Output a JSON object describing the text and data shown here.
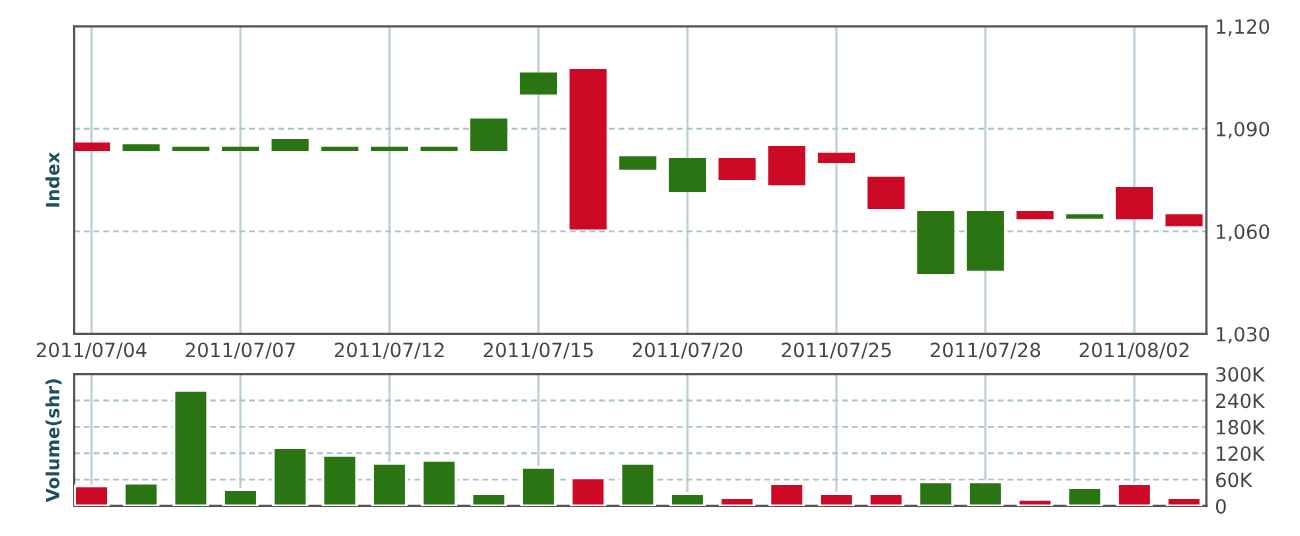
{
  "chart_data": [
    {
      "type": "candlestick",
      "ylabel": "Index",
      "categories": [
        "2011/07/04",
        null,
        null,
        "2011/07/07",
        null,
        null,
        "2011/07/12",
        null,
        null,
        "2011/07/15",
        null,
        null,
        "2011/07/20",
        null,
        null,
        "2011/07/25",
        null,
        null,
        "2011/07/28",
        null,
        null,
        "2011/08/02",
        null
      ],
      "ohlc": [
        [
          1085.5,
          1085.5,
          1084,
          1084
        ],
        [
          1084,
          1085,
          1084,
          1085
        ],
        [
          1084,
          1084.3,
          1084,
          1084.3
        ],
        [
          1084,
          1084.3,
          1084,
          1084.3
        ],
        [
          1084,
          1086.5,
          1084,
          1086.5
        ],
        [
          1084,
          1084.3,
          1084,
          1084.3
        ],
        [
          1084,
          1084.3,
          1084,
          1084.3
        ],
        [
          1084,
          1084.3,
          1084,
          1084.3
        ],
        [
          1084,
          1092.5,
          1084,
          1092.5
        ],
        [
          1100.5,
          1106,
          1100.5,
          1106
        ],
        [
          1107,
          1107,
          1061,
          1061
        ],
        [
          1078.5,
          1081.5,
          1078.5,
          1081.5
        ],
        [
          1072,
          1081,
          1072,
          1081
        ],
        [
          1081,
          1081,
          1075.5,
          1075.5
        ],
        [
          1084.5,
          1084.5,
          1074,
          1074
        ],
        [
          1082.5,
          1082.5,
          1080.5,
          1080.5
        ],
        [
          1075.5,
          1075.5,
          1067,
          1067
        ],
        [
          1048,
          1065.5,
          1048,
          1065.5
        ],
        [
          1049,
          1065.5,
          1049,
          1065.5
        ],
        [
          1065.5,
          1065.5,
          1064,
          1064
        ],
        [
          1064.2,
          1064.5,
          1064.2,
          1064.5
        ],
        [
          1072.5,
          1072.5,
          1064,
          1064
        ],
        [
          1064.5,
          1064.5,
          1062,
          1062
        ]
      ],
      "colors": [
        "#cc0a25",
        "#2a7414",
        "#2a7414",
        "#2a7414",
        "#2a7414",
        "#2a7414",
        "#2a7414",
        "#2a7414",
        "#2a7414",
        "#2a7414",
        "#cc0a25",
        "#2a7414",
        "#2a7414",
        "#cc0a25",
        "#cc0a25",
        "#cc0a25",
        "#cc0a25",
        "#2a7414",
        "#2a7414",
        "#cc0a25",
        "#2a7414",
        "#cc0a25",
        "#cc0a25"
      ],
      "ylim": [
        1030,
        1120
      ],
      "yticks": [
        {
          "value": 1030,
          "label": "1,030"
        },
        {
          "value": 1060,
          "label": "1,060"
        },
        {
          "value": 1090,
          "label": "1,090"
        },
        {
          "value": 1120,
          "label": "1,120"
        }
      ],
      "grid": true
    },
    {
      "type": "bar",
      "ylabel": "Volume(shr)",
      "categories": [
        "2011/07/04",
        null,
        null,
        "2011/07/07",
        null,
        null,
        "2011/07/12",
        null,
        null,
        "2011/07/15",
        null,
        null,
        "2011/07/20",
        null,
        null,
        "2011/07/25",
        null,
        null,
        "2011/07/28",
        null,
        null,
        "2011/08/02",
        null
      ],
      "values": [
        46000,
        52000,
        263000,
        37000,
        133000,
        115000,
        97000,
        104000,
        28000,
        88000,
        64000,
        97000,
        28000,
        19000,
        51000,
        28000,
        28000,
        55000,
        55000,
        15000,
        42000,
        51000,
        19000
      ],
      "colors": [
        "#cc0a25",
        "#2a7414",
        "#2a7414",
        "#2a7414",
        "#2a7414",
        "#2a7414",
        "#2a7414",
        "#2a7414",
        "#2a7414",
        "#2a7414",
        "#cc0a25",
        "#2a7414",
        "#2a7414",
        "#cc0a25",
        "#cc0a25",
        "#cc0a25",
        "#cc0a25",
        "#2a7414",
        "#2a7414",
        "#cc0a25",
        "#2a7414",
        "#cc0a25",
        "#cc0a25"
      ],
      "ylim": [
        0,
        300000
      ],
      "yticks": [
        0,
        {
          "value": 60000,
          "label": "60K"
        },
        {
          "value": 120000,
          "label": "120K"
        },
        {
          "value": 180000,
          "label": "180K"
        },
        {
          "value": 240000,
          "label": "240K"
        },
        {
          "value": 300000,
          "label": "300K"
        }
      ],
      "tick_labels": "y",
      "grid": true
    }
  ]
}
